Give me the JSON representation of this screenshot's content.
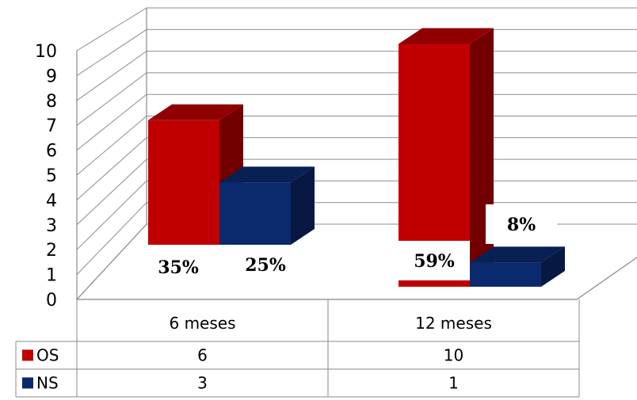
{
  "chart_data": {
    "type": "bar",
    "style": "3d-clustered-column-with-data-table",
    "categories": [
      "6 meses",
      "12 meses"
    ],
    "series": [
      {
        "name": "OS",
        "values": [
          6,
          10
        ],
        "color": "#C00000",
        "labels": [
          "35%",
          "59%"
        ]
      },
      {
        "name": "NS",
        "values": [
          3,
          1
        ],
        "color": "#0B2A6E",
        "labels": [
          "25%",
          "8%"
        ]
      }
    ],
    "ylim": [
      0,
      10
    ],
    "yticks": [
      "0",
      "1",
      "2",
      "3",
      "4",
      "5",
      "6",
      "7",
      "8",
      "9",
      "10"
    ],
    "grid": true,
    "legend": "data-table-left",
    "xlabel": "",
    "ylabel": "",
    "title": ""
  }
}
